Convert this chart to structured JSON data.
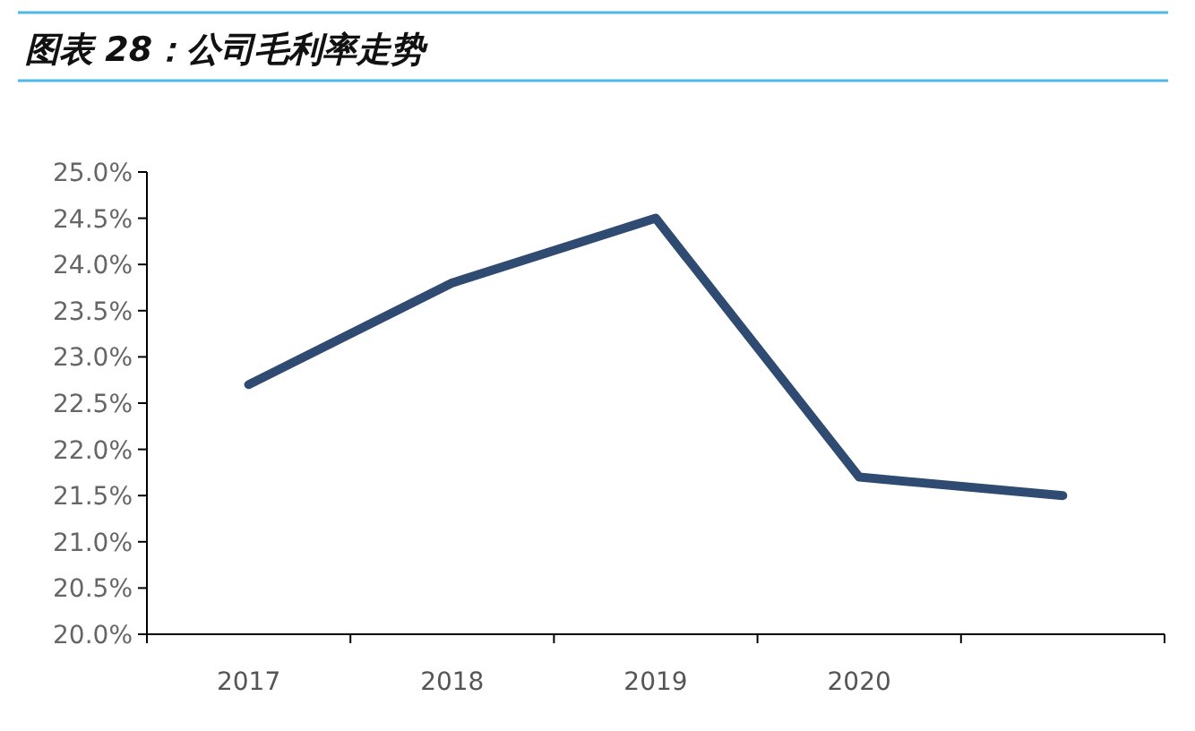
{
  "chart_data": {
    "type": "line",
    "title": "图表 28：公司毛利率走势",
    "categories": [
      "2017",
      "2018",
      "2019",
      "2020",
      null
    ],
    "series": [
      {
        "color": "#2f4b72",
        "values": [
          22.7,
          23.8,
          24.5,
          21.7,
          21.5
        ]
      }
    ],
    "ylim": [
      20,
      25
    ],
    "yticks": [
      {
        "value": 20,
        "label": "20.0%"
      },
      {
        "value": 20.5,
        "label": "20.5%"
      },
      {
        "value": 21,
        "label": "21.0%"
      },
      {
        "value": 21.5,
        "label": "21.5%"
      },
      {
        "value": 22,
        "label": "22.0%"
      },
      {
        "value": 22.5,
        "label": "22.5%"
      },
      {
        "value": 23,
        "label": "23.0%"
      },
      {
        "value": 23.5,
        "label": "23.5%"
      },
      {
        "value": 24,
        "label": "24.0%"
      },
      {
        "value": 24.5,
        "label": "24.5%"
      },
      {
        "value": 25,
        "label": "25.0%"
      }
    ],
    "grid": false,
    "marker": "none",
    "line_style": "solid"
  }
}
